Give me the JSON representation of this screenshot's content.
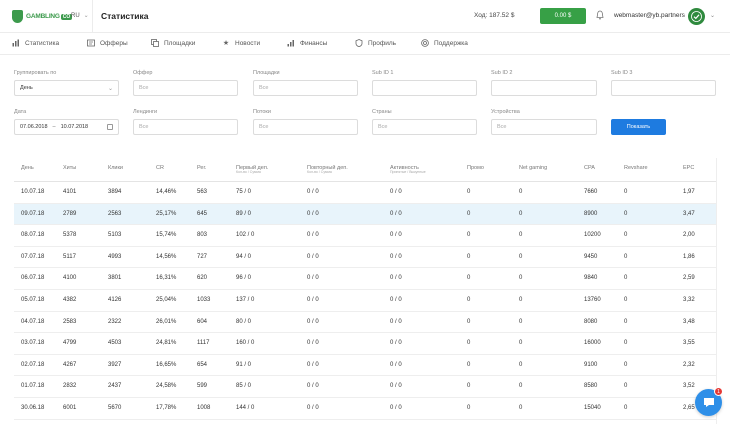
{
  "header": {
    "logo_text": "GAMBLING",
    "logo_badge": "CO",
    "language": "RU",
    "title": "Статистика",
    "balance": "Ход: 187.52 $",
    "withdraw_label": "0.00 $",
    "user_email": "webmaster@yb.partners"
  },
  "nav": [
    {
      "label": "Статистика",
      "icon": "bar-chart-icon"
    },
    {
      "label": "Офферы",
      "icon": "offers-icon"
    },
    {
      "label": "Площадки",
      "icon": "sites-icon"
    },
    {
      "label": "Новости",
      "icon": "star-icon"
    },
    {
      "label": "Финансы",
      "icon": "finance-icon"
    },
    {
      "label": "Профиль",
      "icon": "profile-icon"
    },
    {
      "label": "Поддержка",
      "icon": "support-icon"
    }
  ],
  "filters": {
    "group_by": {
      "label": "Группировать по",
      "value": "День"
    },
    "offer": {
      "label": "Оффер",
      "value": "Все"
    },
    "site": {
      "label": "Площадки",
      "value": "Все"
    },
    "sub1": {
      "label": "Sub ID 1",
      "value": ""
    },
    "sub2": {
      "label": "Sub ID 2",
      "value": ""
    },
    "sub3": {
      "label": "Sub ID 3",
      "value": ""
    },
    "date": {
      "label": "Дата",
      "from": "07.06.2018",
      "sep": "–",
      "to": "10.07.2018"
    },
    "landing": {
      "label": "Лендинги",
      "value": "Все"
    },
    "stream": {
      "label": "Потоки",
      "value": "Все"
    },
    "country": {
      "label": "Страны",
      "value": "Все"
    },
    "device": {
      "label": "Устройства",
      "value": "Все"
    },
    "show_button": "Показать"
  },
  "table": {
    "columns": [
      {
        "label": "День",
        "sub": ""
      },
      {
        "label": "Хиты",
        "sub": ""
      },
      {
        "label": "Клики",
        "sub": ""
      },
      {
        "label": "CR",
        "sub": ""
      },
      {
        "label": "Рег.",
        "sub": ""
      },
      {
        "label": "Первый деп.",
        "sub": "Кол-во / Сумма"
      },
      {
        "label": "Повторный деп.",
        "sub": "Кол-во / Сумма"
      },
      {
        "label": "Активность",
        "sub": "Принятые / Выкупные"
      },
      {
        "label": "Промо",
        "sub": ""
      },
      {
        "label": "Net gaming",
        "sub": ""
      },
      {
        "label": "CPA",
        "sub": ""
      },
      {
        "label": "Revshare",
        "sub": ""
      },
      {
        "label": "EPC",
        "sub": ""
      }
    ],
    "rows": [
      [
        "10.07.18",
        "4101",
        "3894",
        "14,46%",
        "563",
        "75 / 0",
        "0 / 0",
        "0 / 0",
        "0",
        "0",
        "7660",
        "0",
        "1,97"
      ],
      [
        "09.07.18",
        "2789",
        "2563",
        "25,17%",
        "645",
        "89 / 0",
        "0 / 0",
        "0 / 0",
        "0",
        "0",
        "8900",
        "0",
        "3,47"
      ],
      [
        "08.07.18",
        "5378",
        "5103",
        "15,74%",
        "803",
        "102 / 0",
        "0 / 0",
        "0 / 0",
        "0",
        "0",
        "10200",
        "0",
        "2,00"
      ],
      [
        "07.07.18",
        "5117",
        "4993",
        "14,56%",
        "727",
        "94 / 0",
        "0 / 0",
        "0 / 0",
        "0",
        "0",
        "9450",
        "0",
        "1,86"
      ],
      [
        "06.07.18",
        "4100",
        "3801",
        "16,31%",
        "620",
        "96 / 0",
        "0 / 0",
        "0 / 0",
        "0",
        "0",
        "9840",
        "0",
        "2,59"
      ],
      [
        "05.07.18",
        "4382",
        "4126",
        "25,04%",
        "1033",
        "137 / 0",
        "0 / 0",
        "0 / 0",
        "0",
        "0",
        "13760",
        "0",
        "3,32"
      ],
      [
        "04.07.18",
        "2583",
        "2322",
        "26,01%",
        "604",
        "80 / 0",
        "0 / 0",
        "0 / 0",
        "0",
        "0",
        "8080",
        "0",
        "3,48"
      ],
      [
        "03.07.18",
        "4799",
        "4503",
        "24,81%",
        "1117",
        "160 / 0",
        "0 / 0",
        "0 / 0",
        "0",
        "0",
        "16000",
        "0",
        "3,55"
      ],
      [
        "02.07.18",
        "4267",
        "3927",
        "16,65%",
        "654",
        "91 / 0",
        "0 / 0",
        "0 / 0",
        "0",
        "0",
        "9100",
        "0",
        "2,32"
      ],
      [
        "01.07.18",
        "2832",
        "2437",
        "24,58%",
        "599",
        "85 / 0",
        "0 / 0",
        "0 / 0",
        "0",
        "0",
        "8580",
        "0",
        "3,52"
      ],
      [
        "30.06.18",
        "6001",
        "5670",
        "17,78%",
        "1008",
        "144 / 0",
        "0 / 0",
        "0 / 0",
        "0",
        "0",
        "15040",
        "0",
        "2,65"
      ]
    ],
    "highlighted_row": 1
  },
  "colors": {
    "brand_green": "#37a046",
    "primary_blue": "#1e7be0",
    "row_highlight": "#e8f4fb"
  },
  "chat": {
    "badge": "1"
  }
}
